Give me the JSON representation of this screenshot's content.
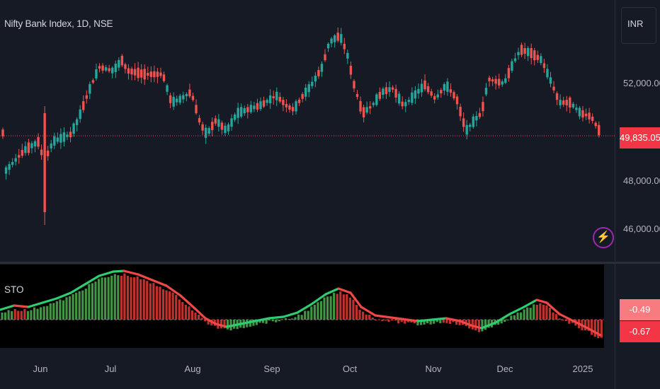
{
  "chart": {
    "title": "Nifty Bank Index, 1D, NSE",
    "currency": "INR",
    "last_price": "49,835.05",
    "price_ticks": [
      "52,000.00",
      "48,000.00",
      "46,000.00"
    ],
    "time_ticks": [
      "Jun",
      "Jul",
      "Aug",
      "Sep",
      "Oct",
      "Nov",
      "Dec",
      "2025"
    ],
    "colors": {
      "up": "#26a69a",
      "down": "#ef5350",
      "background": "#161a25",
      "last_price_bg": "#f23645"
    }
  },
  "indicator": {
    "name": "STO",
    "value_signal": "-0.49",
    "value_main": "-0.67",
    "colors": {
      "line_up": "#2ecc71",
      "line_down": "#f04747",
      "hist_up": "#4caf50",
      "hist_down": "#e53935"
    }
  },
  "icons": {
    "alert": "lightning-bolt-icon"
  }
}
